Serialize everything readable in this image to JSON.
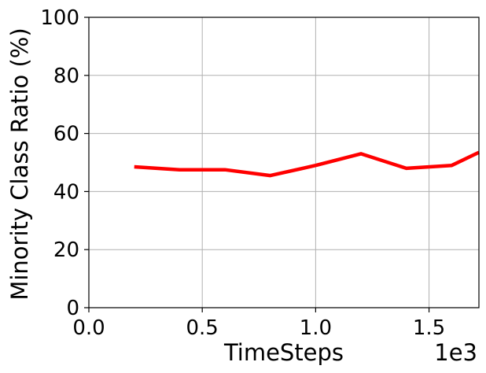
{
  "chart_data": {
    "type": "line",
    "title": "",
    "xlabel": "TimeSteps",
    "ylabel": "Minority Class Ratio (%)",
    "x_offset_text": "1e3",
    "xlim": [
      0,
      1.72
    ],
    "ylim": [
      0,
      100
    ],
    "x_ticks": [
      0.0,
      0.5,
      1.0,
      1.5
    ],
    "x_tick_labels": [
      "0.0",
      "0.5",
      "1.0",
      "1.5"
    ],
    "y_ticks": [
      0,
      20,
      40,
      60,
      80,
      100
    ],
    "y_tick_labels": [
      "0",
      "20",
      "40",
      "60",
      "80",
      "100"
    ],
    "grid": true,
    "series": [
      {
        "color": "#ff0000",
        "x": [
          0.2,
          0.4,
          0.6,
          0.8,
          1.0,
          1.2,
          1.4,
          1.6,
          1.72
        ],
        "y": [
          48.5,
          47.5,
          47.5,
          45.5,
          49.0,
          53.0,
          48.0,
          49.0,
          53.5
        ]
      }
    ]
  }
}
